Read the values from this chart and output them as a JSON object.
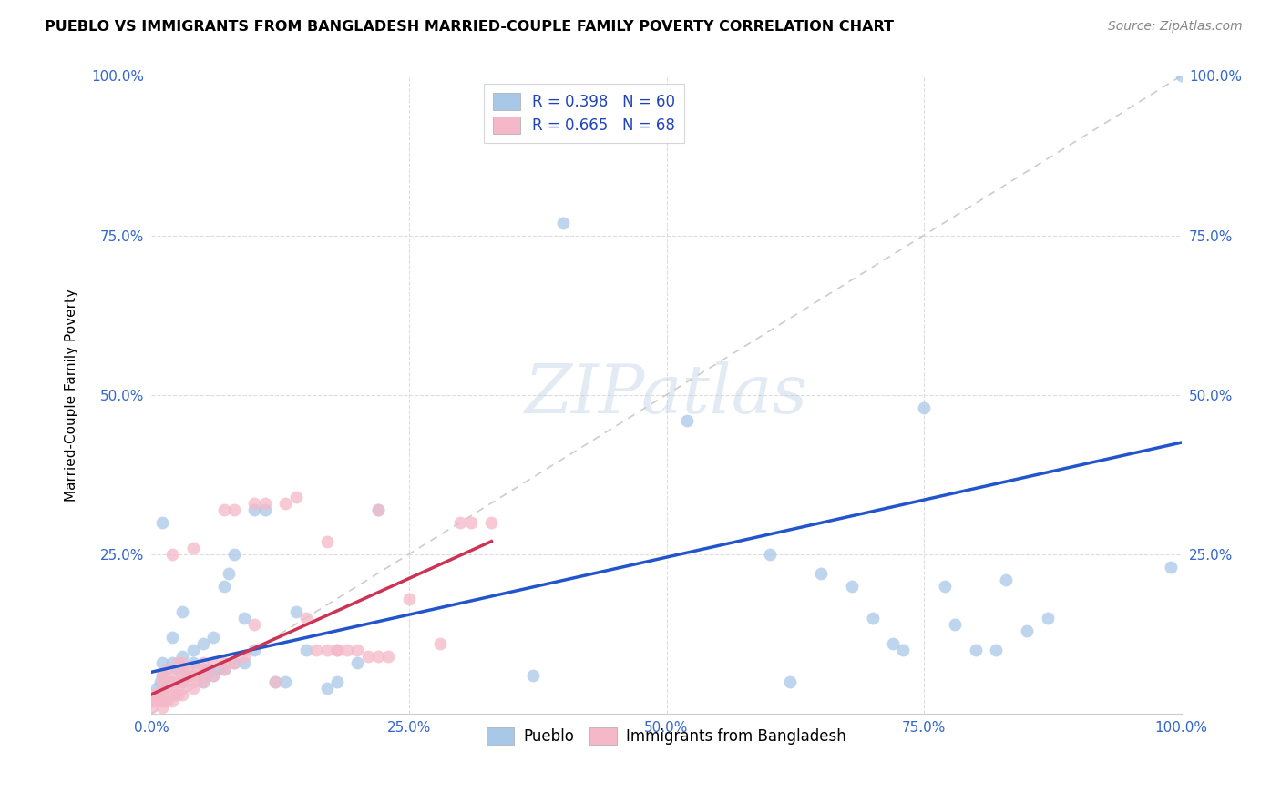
{
  "title": "PUEBLO VS IMMIGRANTS FROM BANGLADESH MARRIED-COUPLE FAMILY POVERTY CORRELATION CHART",
  "source": "Source: ZipAtlas.com",
  "ylabel": "Married-Couple Family Poverty",
  "legend_label1": "Pueblo",
  "legend_label2": "Immigrants from Bangladesh",
  "R1": 0.398,
  "N1": 60,
  "R2": 0.665,
  "N2": 68,
  "color_blue": "#a8c8e8",
  "color_pink": "#f4b8c8",
  "line_blue": "#2255cc",
  "line_pink": "#cc3355",
  "diag_color": "#cccccc",
  "watermark": "ZIPatlas",
  "xmin": 0.0,
  "xmax": 1.0,
  "ymin": 0.0,
  "ymax": 1.0,
  "xticks": [
    0.0,
    0.25,
    0.5,
    0.75,
    1.0
  ],
  "yticks": [
    0.0,
    0.25,
    0.5,
    0.75,
    1.0
  ],
  "xtick_labels": [
    "0.0%",
    "25.0%",
    "50.0%",
    "75.0%",
    "100.0%"
  ],
  "ytick_labels": [
    "",
    "25.0%",
    "50.0%",
    "75.0%",
    "100.0%"
  ],
  "blue_x": [
    0.005,
    0.008,
    0.01,
    0.01,
    0.01,
    0.02,
    0.02,
    0.02,
    0.025,
    0.03,
    0.03,
    0.03,
    0.035,
    0.04,
    0.04,
    0.05,
    0.05,
    0.05,
    0.055,
    0.06,
    0.06,
    0.065,
    0.07,
    0.07,
    0.075,
    0.08,
    0.08,
    0.09,
    0.09,
    0.1,
    0.1,
    0.11,
    0.12,
    0.13,
    0.14,
    0.15,
    0.17,
    0.18,
    0.2,
    0.22,
    0.37,
    0.4,
    0.52,
    0.6,
    0.62,
    0.65,
    0.68,
    0.7,
    0.72,
    0.73,
    0.75,
    0.77,
    0.78,
    0.8,
    0.82,
    0.83,
    0.85,
    0.87,
    0.99,
    1.0
  ],
  "blue_y": [
    0.04,
    0.05,
    0.06,
    0.08,
    0.3,
    0.05,
    0.08,
    0.12,
    0.07,
    0.05,
    0.09,
    0.16,
    0.06,
    0.08,
    0.1,
    0.05,
    0.06,
    0.11,
    0.07,
    0.06,
    0.12,
    0.07,
    0.2,
    0.07,
    0.22,
    0.08,
    0.25,
    0.08,
    0.15,
    0.1,
    0.32,
    0.32,
    0.05,
    0.05,
    0.16,
    0.1,
    0.04,
    0.05,
    0.08,
    0.32,
    0.06,
    0.77,
    0.46,
    0.25,
    0.05,
    0.22,
    0.2,
    0.15,
    0.11,
    0.1,
    0.48,
    0.2,
    0.14,
    0.1,
    0.1,
    0.21,
    0.13,
    0.15,
    0.23,
    1.0
  ],
  "pink_x": [
    0.0,
    0.0,
    0.0,
    0.005,
    0.005,
    0.01,
    0.01,
    0.01,
    0.01,
    0.01,
    0.01,
    0.015,
    0.015,
    0.02,
    0.02,
    0.02,
    0.02,
    0.02,
    0.02,
    0.025,
    0.025,
    0.03,
    0.03,
    0.03,
    0.03,
    0.03,
    0.03,
    0.035,
    0.04,
    0.04,
    0.04,
    0.04,
    0.045,
    0.05,
    0.05,
    0.05,
    0.05,
    0.06,
    0.06,
    0.07,
    0.07,
    0.07,
    0.08,
    0.08,
    0.09,
    0.1,
    0.1,
    0.11,
    0.12,
    0.13,
    0.14,
    0.15,
    0.16,
    0.17,
    0.17,
    0.18,
    0.18,
    0.19,
    0.2,
    0.21,
    0.22,
    0.22,
    0.23,
    0.25,
    0.28,
    0.3,
    0.31,
    0.33
  ],
  "pink_y": [
    0.01,
    0.02,
    0.03,
    0.02,
    0.03,
    0.01,
    0.02,
    0.03,
    0.04,
    0.05,
    0.06,
    0.02,
    0.07,
    0.02,
    0.03,
    0.04,
    0.05,
    0.06,
    0.25,
    0.03,
    0.08,
    0.03,
    0.04,
    0.05,
    0.06,
    0.07,
    0.08,
    0.07,
    0.04,
    0.05,
    0.06,
    0.26,
    0.07,
    0.05,
    0.06,
    0.07,
    0.08,
    0.06,
    0.08,
    0.07,
    0.08,
    0.32,
    0.08,
    0.32,
    0.09,
    0.14,
    0.33,
    0.33,
    0.05,
    0.33,
    0.34,
    0.15,
    0.1,
    0.1,
    0.27,
    0.1,
    0.1,
    0.1,
    0.1,
    0.09,
    0.09,
    0.32,
    0.09,
    0.18,
    0.11,
    0.3,
    0.3,
    0.3
  ]
}
